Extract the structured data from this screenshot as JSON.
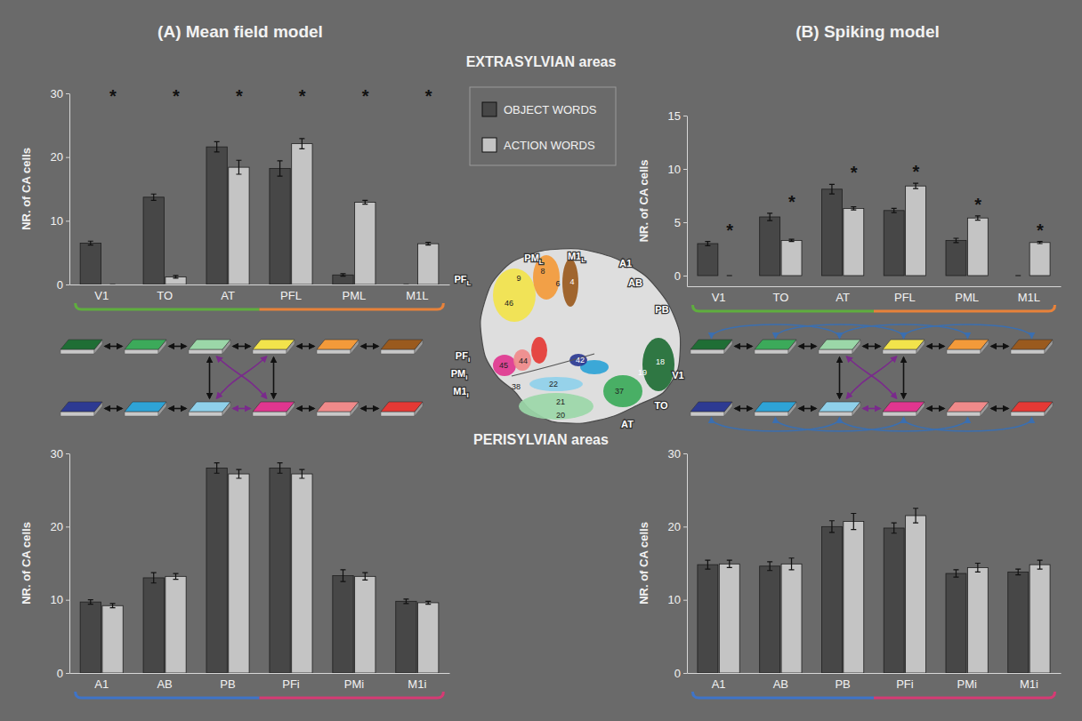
{
  "panels": [
    "(A) Mean field model",
    "(B) Spiking model"
  ],
  "sections": [
    "EXTRASYLVIAN areas",
    "PERISYLVIAN areas"
  ],
  "chart_data": [
    {
      "type": "bar",
      "y_label": "NR. of CA cells",
      "categories": [
        "V1",
        "TO",
        "AT",
        "PFL",
        "PML",
        "M1L"
      ],
      "annotations": [
        "*",
        "*",
        "*",
        "*",
        "*",
        "*"
      ],
      "series": [
        {
          "name": "OBJECT WORDS",
          "color": "#474747",
          "values": [
            6.5,
            13.7,
            21.6,
            18.2,
            1.5,
            0
          ],
          "errors": [
            0.3,
            0.5,
            0.8,
            1.2,
            0.2,
            0
          ]
        },
        {
          "name": "ACTION WORDS",
          "color": "#c4c4c4",
          "values": [
            0,
            1.2,
            18.4,
            22.1,
            12.9,
            6.4
          ],
          "errors": [
            0,
            0.2,
            1.1,
            0.8,
            0.3,
            0.2
          ]
        }
      ],
      "ylim": [
        0,
        30
      ],
      "yticks": [
        0,
        10,
        20,
        30
      ]
    },
    {
      "type": "bar",
      "y_label": "NR. of CA cells",
      "categories": [
        "V1",
        "TO",
        "AT",
        "PFL",
        "PML",
        "M1L"
      ],
      "annotations": [
        "*",
        "*",
        "*",
        "*",
        "*",
        "*"
      ],
      "series": [
        {
          "name": "OBJECT WORDS",
          "color": "#474747",
          "values": [
            3,
            5.5,
            8.1,
            6.1,
            3.3,
            0
          ],
          "errors": [
            0.2,
            0.35,
            0.45,
            0.2,
            0.2,
            0
          ]
        },
        {
          "name": "ACTION WORDS",
          "color": "#c4c4c4",
          "values": [
            0,
            3.3,
            6.3,
            8.4,
            5.4,
            3.1
          ],
          "errors": [
            0,
            0.1,
            0.15,
            0.25,
            0.2,
            0.1
          ]
        }
      ],
      "ylim": [
        -1,
        15
      ],
      "yticks": [
        0,
        5,
        10,
        15
      ]
    },
    {
      "type": "bar",
      "y_label": "NR. of CA cells",
      "categories": [
        "A1",
        "AB",
        "PB",
        "PFi",
        "PMi",
        "M1i"
      ],
      "series": [
        {
          "name": "OBJECT WORDS",
          "color": "#474747",
          "values": [
            9.7,
            13,
            28,
            28,
            13.3,
            9.8
          ],
          "errors": [
            0.3,
            0.7,
            0.7,
            0.7,
            0.8,
            0.3
          ]
        },
        {
          "name": "ACTION WORDS",
          "color": "#c4c4c4",
          "values": [
            9.2,
            13.2,
            27.2,
            27.2,
            13.2,
            9.6
          ],
          "errors": [
            0.3,
            0.4,
            0.6,
            0.6,
            0.5,
            0.2
          ]
        }
      ],
      "ylim": [
        0,
        30
      ],
      "yticks": [
        0,
        10,
        20,
        30
      ]
    },
    {
      "type": "bar",
      "y_label": "NR. of CA cells",
      "categories": [
        "A1",
        "AB",
        "PB",
        "PFi",
        "PMi",
        "M1i"
      ],
      "series": [
        {
          "name": "OBJECT WORDS",
          "color": "#474747",
          "values": [
            14.8,
            14.6,
            20,
            19.8,
            13.6,
            13.8
          ],
          "errors": [
            0.6,
            0.6,
            0.8,
            0.7,
            0.5,
            0.4
          ]
        },
        {
          "name": "ACTION WORDS",
          "color": "#c4c4c4",
          "values": [
            14.9,
            14.9,
            20.7,
            21.5,
            14.4,
            14.8
          ],
          "errors": [
            0.5,
            0.8,
            1.1,
            1,
            0.6,
            0.6
          ]
        }
      ],
      "ylim": [
        0,
        30
      ],
      "yticks": [
        0,
        10,
        20,
        30
      ]
    }
  ],
  "brain": {
    "areas": [
      {
        "label": "PF",
        "sub": "L"
      },
      {
        "label": "PM",
        "sub": "L"
      },
      {
        "label": "M1",
        "sub": "L"
      },
      {
        "label": "A1"
      },
      {
        "label": "AB"
      },
      {
        "label": "PB"
      },
      {
        "label": "PF",
        "sub": "i"
      },
      {
        "label": "PM",
        "sub": "i"
      },
      {
        "label": "M1",
        "sub": "i"
      },
      {
        "label": "AT"
      },
      {
        "label": "TO"
      },
      {
        "label": "V1"
      }
    ],
    "brodmann": [
      "9",
      "46",
      "8",
      "6",
      "4",
      "45",
      "44",
      "38",
      "22",
      "42",
      "21",
      "20",
      "37",
      "19",
      "18"
    ]
  }
}
